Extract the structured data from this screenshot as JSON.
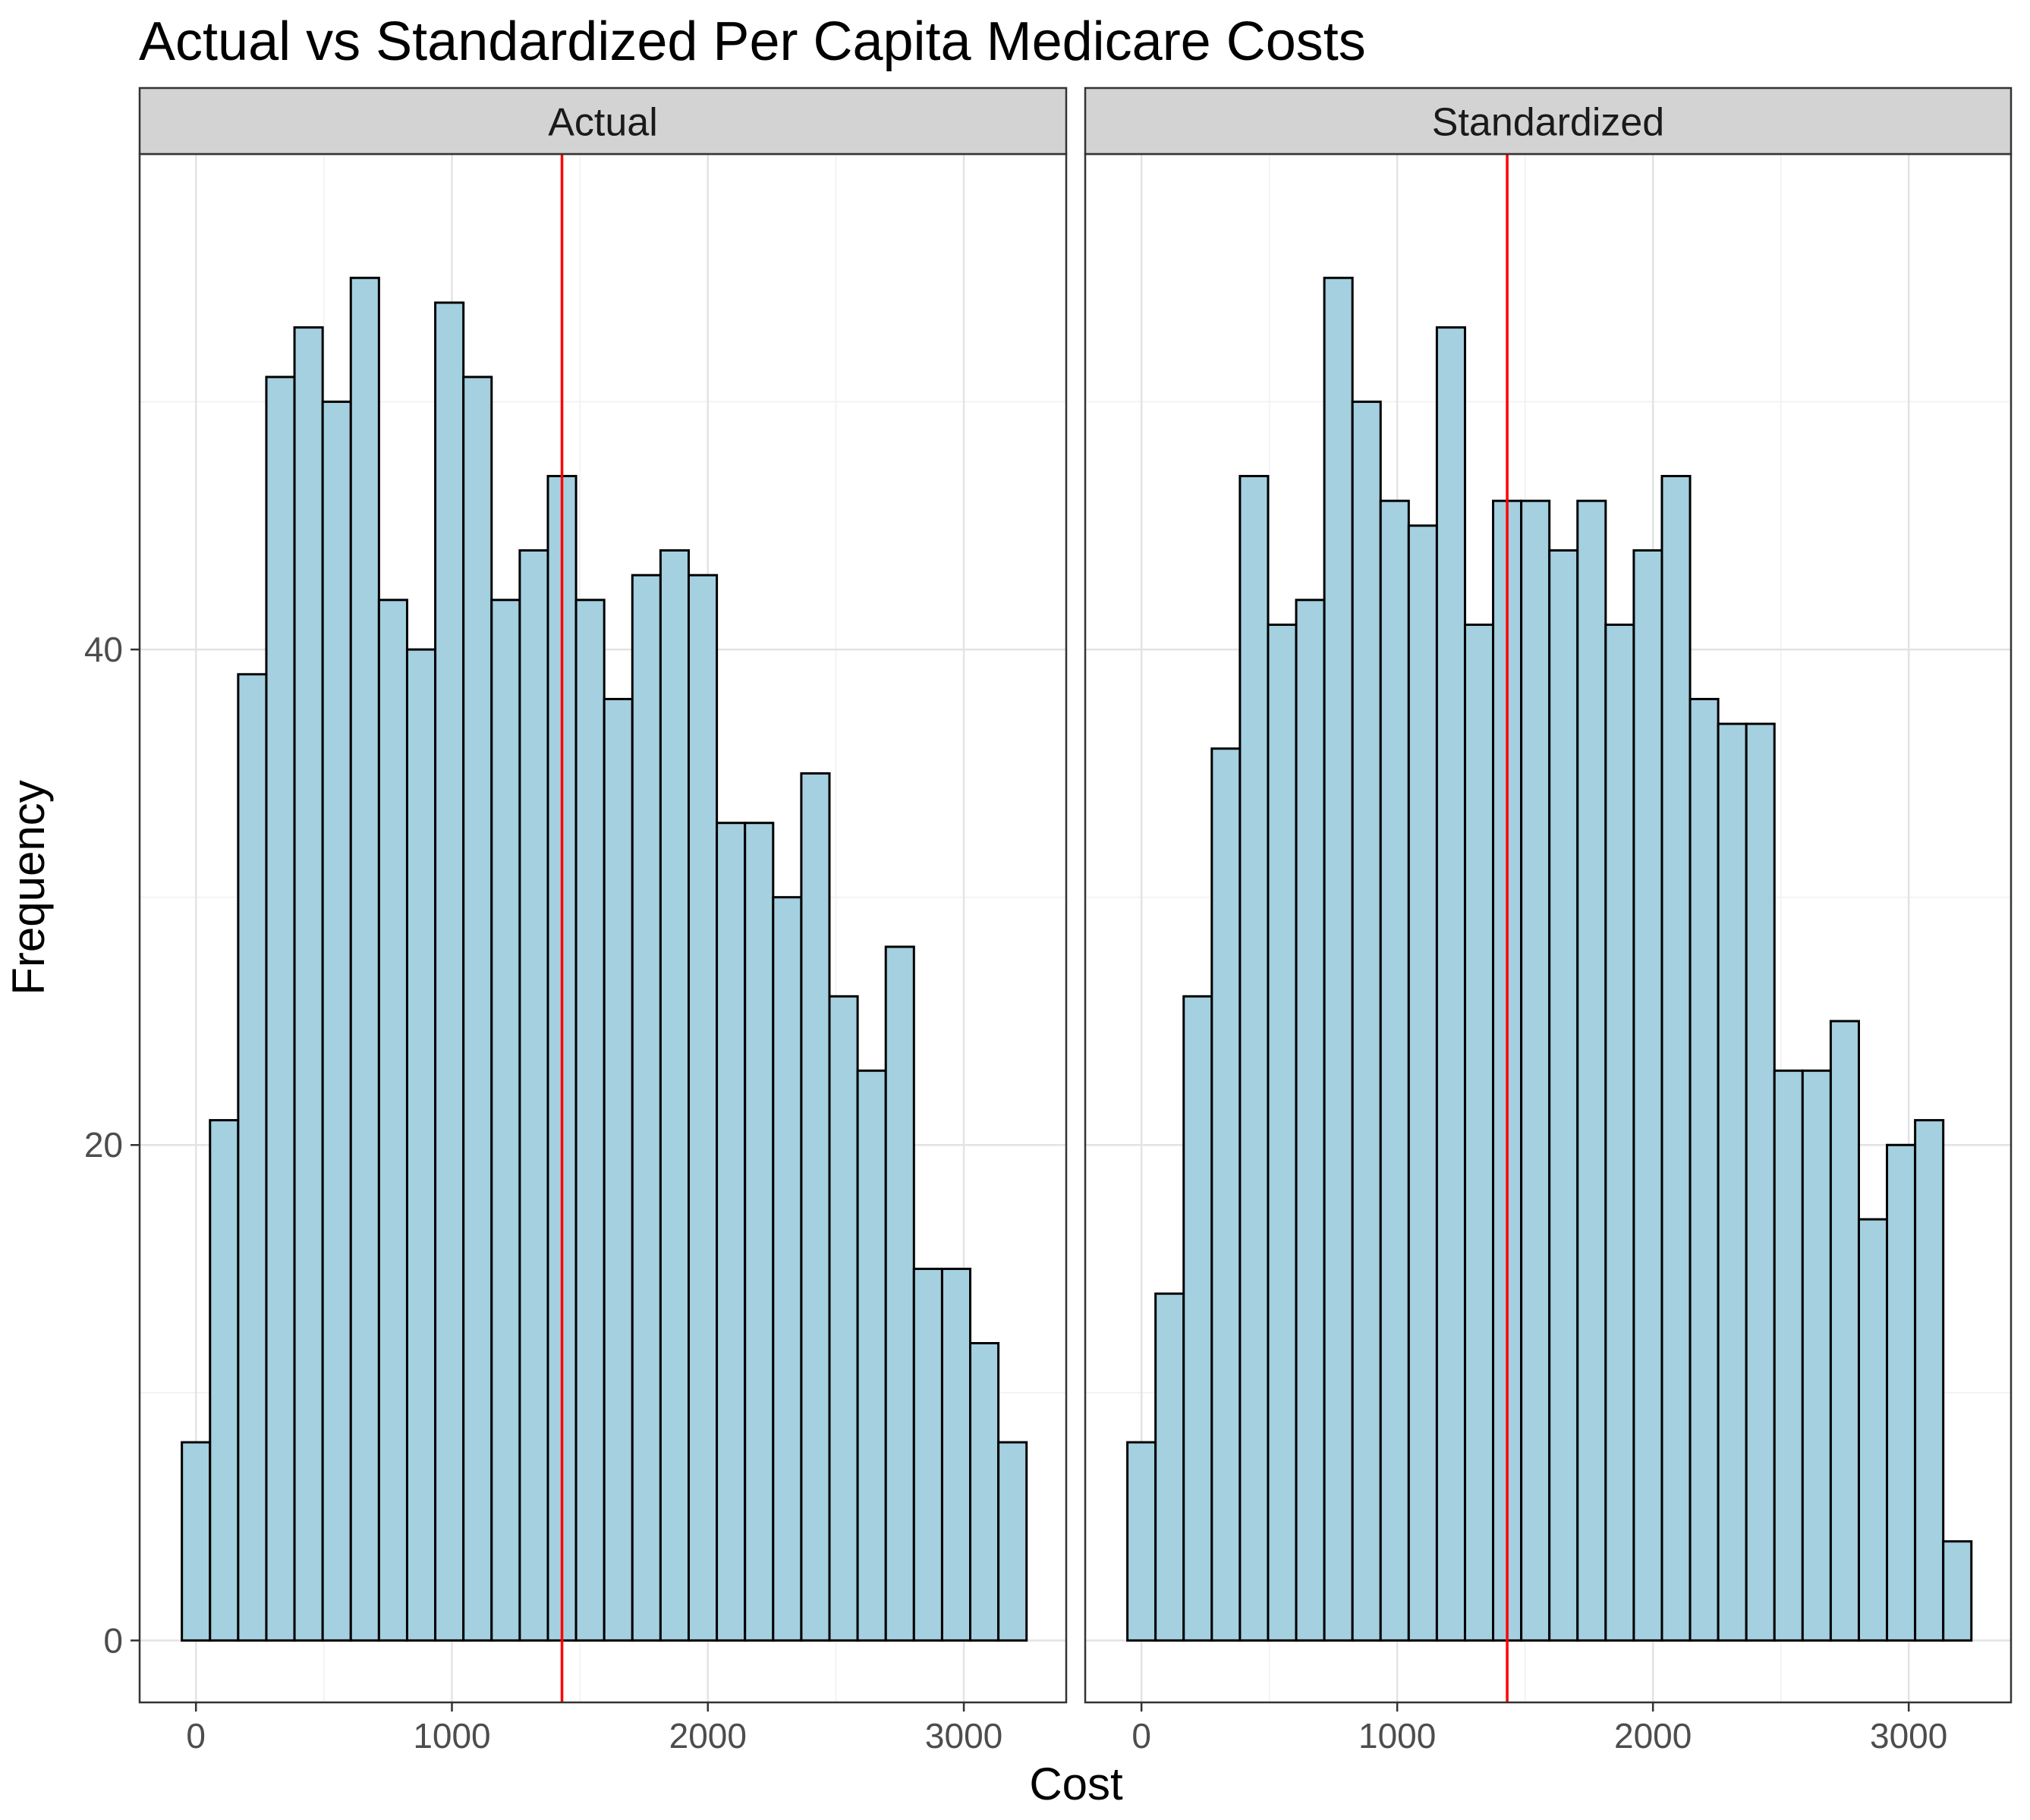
{
  "chart_data": {
    "type": "bar",
    "title": "Actual vs Standardized Per Capita Medicare Costs",
    "xlabel": "Cost",
    "ylabel": "Frequency",
    "x_ticks": [
      "0",
      "1000",
      "2000",
      "3000"
    ],
    "y_ticks": [
      "0",
      "20",
      "40"
    ],
    "xlim": [
      -220,
      3400
    ],
    "ylim": [
      -2.5,
      60
    ],
    "bin_start": -55,
    "bin_width": 110,
    "reference_line": {
      "value": 1430,
      "color": "#ff0000"
    },
    "bar_fill": "#a4d0e0",
    "bar_stroke": "#000000",
    "grid": true,
    "panels": [
      {
        "name": "Actual",
        "values": [
          8,
          21,
          39,
          51,
          53,
          50,
          55,
          42,
          40,
          54,
          51,
          42,
          44,
          47,
          42,
          38,
          43,
          44,
          43,
          33,
          33,
          30,
          35,
          26,
          23,
          28,
          15,
          15,
          12,
          8
        ]
      },
      {
        "name": "Standardized",
        "values": [
          8,
          14,
          26,
          36,
          47,
          41,
          42,
          55,
          50,
          46,
          45,
          53,
          41,
          46,
          46,
          44,
          46,
          41,
          44,
          47,
          38,
          37,
          37,
          23,
          23,
          25,
          17,
          20,
          21,
          4
        ]
      }
    ]
  }
}
